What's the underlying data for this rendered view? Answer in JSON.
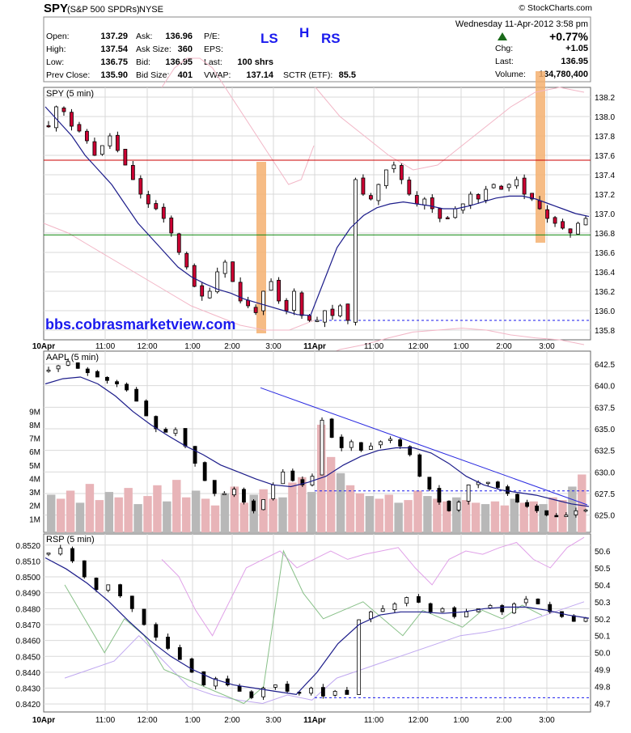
{
  "header": {
    "symbol": "SPY",
    "name": "(S&P 500 SPDRs)",
    "exchange": "NYSE",
    "brand": "© StockCharts.com",
    "datetime": "Wednesday  11-Apr-2012  3:58 pm",
    "pct_change": "+0.77%",
    "stats": [
      {
        "label": "Open:",
        "value": "137.29"
      },
      {
        "label": "High:",
        "value": "137.54"
      },
      {
        "label": "Low:",
        "value": "136.75"
      },
      {
        "label": "Prev Close:",
        "value": "135.90"
      },
      {
        "label": "Ask:",
        "value": "136.96"
      },
      {
        "label": "Ask Size:",
        "value": "360"
      },
      {
        "label": "Bid:",
        "value": "136.95"
      },
      {
        "label": "Bid Size:",
        "value": "401"
      },
      {
        "label": "P/E:",
        "value": ""
      },
      {
        "label": "EPS:",
        "value": ""
      },
      {
        "label": "Last:",
        "value": "100 shrs"
      },
      {
        "label": "VWAP:",
        "value": "137.14"
      },
      {
        "label": "SCTR (ETF):",
        "value": "85.5"
      },
      {
        "label": "Chg:",
        "value": "+1.05"
      },
      {
        "label": "Last:",
        "value": "136.95"
      },
      {
        "label": "Volume:",
        "value": "134,780,400"
      }
    ],
    "pattern_labels": {
      "left": "LS",
      "head": "H",
      "right": "RS"
    },
    "colors": {
      "pattern": "#1a1aee",
      "up_arrow": "#1a6a1a",
      "header_border": "#888888"
    }
  },
  "watermark": "bbs.cobrasmarketview.com",
  "colors": {
    "up_candle": "#ffffff",
    "down_candle": "#000000",
    "spy_down_candle": "#cc0033",
    "ma_line": "#1c1c8a",
    "envelope": "#f2b6c6",
    "resistance": "#cc0000",
    "support": "#118811",
    "highlight": "#f4b070",
    "dashed": "#1a1aee",
    "volume_up": "#b8b8b8",
    "volume_down": "#e8b4b8",
    "trendline": "#2a2ae0",
    "rsp_green": "#88c088",
    "rsp_pink": "#e0a0e8",
    "rsp_lilac": "#c0a8f0",
    "grid": "#d9d9d9"
  },
  "x_axis": {
    "labels": [
      "10Apr",
      "11:00",
      "12:00",
      "1:00",
      "2:00",
      "3:00",
      "11Apr",
      "11:00",
      "12:00",
      "1:00",
      "2:00",
      "3:00"
    ],
    "bold_labels": [
      "10Apr",
      "11Apr"
    ]
  },
  "chart_data": [
    {
      "type": "candlestick",
      "title": "SPY (5 min)",
      "ylim": [
        135.7,
        138.3
      ],
      "y_ticks": [
        "138.2",
        "138.0",
        "137.8",
        "137.6",
        "137.4",
        "137.2",
        "137.0",
        "136.8",
        "136.6",
        "136.4",
        "136.2",
        "136.0",
        "135.8"
      ],
      "close_series": [
        137.9,
        138.1,
        138.05,
        137.9,
        137.85,
        137.75,
        137.6,
        137.7,
        137.8,
        137.65,
        137.5,
        137.35,
        137.2,
        137.1,
        137.05,
        136.95,
        136.8,
        136.6,
        136.45,
        136.25,
        136.15,
        136.2,
        136.4,
        136.5,
        136.3,
        136.1,
        136.05,
        135.98,
        136.2,
        136.3,
        136.1,
        136.0,
        136.2,
        135.95,
        135.9,
        135.9,
        136.0,
        135.95,
        136.05,
        135.9,
        137.35,
        137.2,
        137.15,
        137.3,
        137.45,
        137.5,
        137.35,
        137.2,
        137.1,
        137.15,
        137.05,
        136.95,
        136.95,
        137.05,
        137.1,
        137.2,
        137.15,
        137.25,
        137.3,
        137.25,
        137.3,
        137.35,
        137.2,
        137.15,
        137.05,
        136.95,
        136.9,
        136.85,
        136.8,
        136.9,
        136.95
      ],
      "moving_average": [
        138.1,
        137.95,
        137.8,
        137.6,
        137.45,
        137.3,
        137.1,
        136.9,
        136.75,
        136.6,
        136.45,
        136.35,
        136.28,
        136.22,
        136.18,
        136.12,
        136.08,
        136.04,
        136.0,
        135.96,
        135.95,
        136.3,
        136.65,
        136.85,
        136.98,
        137.06,
        137.1,
        137.12,
        137.1,
        137.08,
        137.05,
        137.05,
        137.08,
        137.12,
        137.16,
        137.18,
        137.18,
        137.15,
        137.1,
        137.05,
        137.0,
        136.97
      ],
      "resistance": 137.55,
      "support": 136.78,
      "dashed_level": 135.9,
      "highlight_bars": [
        "2:30 (10Apr)",
        "3:00 (11Apr)"
      ]
    },
    {
      "type": "candlestick",
      "title": "AAPL (5 min)",
      "ylim": [
        623.0,
        644.0
      ],
      "y_ticks": [
        "642.5",
        "640.0",
        "637.5",
        "635.0",
        "632.5",
        "630.0",
        "627.5",
        "625.0"
      ],
      "close_series": [
        641.8,
        642.3,
        642.8,
        642.0,
        641.5,
        641.0,
        640.6,
        640.2,
        639.5,
        638.2,
        636.5,
        635.0,
        634.6,
        634.9,
        633.0,
        631.0,
        629.0,
        627.5,
        627.5,
        628.0,
        626.5,
        625.5,
        626.8,
        628.5,
        630.0,
        629.0,
        628.5,
        629.5,
        636.0,
        634.0,
        632.8,
        633.5,
        632.5,
        633.0,
        633.5,
        633.8,
        633.0,
        632.0,
        629.5,
        628.0,
        626.5,
        625.5,
        626.5,
        628.5,
        628.8,
        628.8,
        628.2,
        627.5,
        626.5,
        626.0,
        625.5,
        625.0,
        624.8,
        625.0,
        625.5,
        625.6
      ],
      "trendline": {
        "start": 639.0,
        "end": 626.0
      },
      "moving_average": [
        640.2,
        640.8,
        641.0,
        640.2,
        638.8,
        637.0,
        635.5,
        634.2,
        633.0,
        632.0,
        630.8,
        630.0,
        629.2,
        628.5,
        628.3,
        628.8,
        629.5,
        630.8,
        631.8,
        632.5,
        632.8,
        632.8,
        632.2,
        631.0,
        629.5,
        628.5,
        627.9,
        627.6,
        627.3,
        626.8,
        626.3,
        626.0
      ],
      "dashed_level": 627.8,
      "volume_axis": {
        "labels": [
          "9M",
          "8M",
          "7M",
          "6M",
          "5M",
          "4M",
          "3M",
          "2M",
          "1M"
        ],
        "max": 9500000
      },
      "volume": [
        2800000,
        2500000,
        3100000,
        2200000,
        3600000,
        2400000,
        3000000,
        2600000,
        3300000,
        2100000,
        2700000,
        3500000,
        2300000,
        3900000,
        2600000,
        3100000,
        2500000,
        2000000,
        2900000,
        3400000,
        2200000,
        2800000,
        3200000,
        2500000,
        2600000,
        3700000,
        4100000,
        3000000,
        8000000,
        5600000,
        4400000,
        3500000,
        2900000,
        2700000,
        2500000,
        2800000,
        2200000,
        2400000,
        3100000,
        2700000,
        2500000,
        2300000,
        2600000,
        2400000,
        2200000,
        2100000,
        2300000,
        2000000,
        2500000,
        2200000,
        2300000,
        2100000,
        2600000,
        2400000,
        3400000,
        4300000
      ]
    },
    {
      "type": "candlestick",
      "title": "RSP (5 min)",
      "ylim": [
        0.8415,
        0.8527
      ],
      "y_ticks": [
        "0.8520",
        "0.8510",
        "0.8500",
        "0.8490",
        "0.8480",
        "0.8470",
        "0.8460",
        "0.8450",
        "0.8440",
        "0.8430",
        "0.8420"
      ],
      "right_ylim": [
        49.65,
        50.7
      ],
      "right_ticks": [
        "50.6",
        "50.5",
        "50.4",
        "50.3",
        "50.2",
        "50.1",
        "50.0",
        "49.9",
        "49.8",
        "49.7"
      ],
      "close_series": [
        0.8515,
        0.8518,
        0.851,
        0.85,
        0.8492,
        0.8495,
        0.8488,
        0.848,
        0.847,
        0.8462,
        0.8455,
        0.8448,
        0.844,
        0.8432,
        0.8436,
        0.8432,
        0.8428,
        0.8424,
        0.843,
        0.8432,
        0.8428,
        0.8427,
        0.843,
        0.8425,
        0.8428,
        0.8426,
        0.8473,
        0.8478,
        0.848,
        0.8483,
        0.8487,
        0.8484,
        0.8478,
        0.848,
        0.8475,
        0.8478,
        0.848,
        0.8482,
        0.8478,
        0.8483,
        0.8486,
        0.8483,
        0.8478,
        0.8475,
        0.8472,
        0.8474
      ],
      "moving_average": [
        0.8512,
        0.8505,
        0.8496,
        0.8485,
        0.8472,
        0.846,
        0.845,
        0.8442,
        0.8436,
        0.8432,
        0.843,
        0.8428,
        0.8426,
        0.844,
        0.8458,
        0.847,
        0.8476,
        0.8478,
        0.8478,
        0.8477,
        0.8478,
        0.848,
        0.8481,
        0.8481,
        0.8479,
        0.8476,
        0.8474
      ],
      "dashed_level": 0.8424,
      "overlay_pink": [
        50.55,
        50.45,
        50.25,
        50.1,
        50.3,
        50.5,
        50.55,
        50.6,
        50.5,
        50.55,
        50.6,
        50.55,
        50.58,
        50.6,
        50.62,
        50.5,
        50.4,
        50.55,
        50.6,
        50.58,
        50.62,
        50.65,
        50.55,
        50.5,
        50.62,
        50.68
      ],
      "overlay_green": [
        50.4,
        50.2,
        50.0,
        50.2,
        50.1,
        49.9,
        49.85,
        49.8,
        49.75,
        49.7,
        49.8,
        50.6,
        50.35,
        50.2,
        50.25,
        50.3,
        50.2,
        50.1,
        50.25,
        50.2,
        50.15,
        50.25,
        50.2,
        50.28,
        50.22
      ],
      "overlay_lilac": [
        49.85,
        49.9,
        49.95,
        50.1,
        49.95,
        49.8,
        49.75,
        49.72,
        49.7,
        49.75,
        49.72,
        49.85,
        49.9,
        49.95,
        50.0,
        50.05,
        50.1,
        50.12,
        50.15,
        50.2,
        50.25,
        50.3
      ]
    }
  ]
}
